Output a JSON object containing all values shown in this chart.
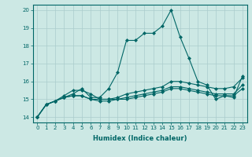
{
  "title": "",
  "xlabel": "Humidex (Indice chaleur)",
  "bg_color": "#cce8e4",
  "grid_color": "#aacccc",
  "line_color": "#006666",
  "xlim": [
    -0.5,
    23.5
  ],
  "ylim": [
    13.7,
    20.3
  ],
  "xticks": [
    0,
    1,
    2,
    3,
    4,
    5,
    6,
    7,
    8,
    9,
    10,
    11,
    12,
    13,
    14,
    15,
    16,
    17,
    18,
    19,
    20,
    21,
    22,
    23
  ],
  "yticks": [
    14,
    15,
    16,
    17,
    18,
    19,
    20
  ],
  "series": [
    [
      14.0,
      14.7,
      14.9,
      15.1,
      15.3,
      15.6,
      15.1,
      15.1,
      15.6,
      16.5,
      18.3,
      18.3,
      18.7,
      18.7,
      19.1,
      20.0,
      18.5,
      17.3,
      16.0,
      15.8,
      15.0,
      15.2,
      15.1,
      16.3
    ],
    [
      14.0,
      14.7,
      14.9,
      15.2,
      15.5,
      15.5,
      15.3,
      15.0,
      15.0,
      15.1,
      15.3,
      15.4,
      15.5,
      15.6,
      15.7,
      16.0,
      16.0,
      15.9,
      15.8,
      15.7,
      15.6,
      15.6,
      15.7,
      16.2
    ],
    [
      14.0,
      14.7,
      14.9,
      15.1,
      15.2,
      15.2,
      15.0,
      15.0,
      15.0,
      15.0,
      15.1,
      15.2,
      15.3,
      15.4,
      15.5,
      15.7,
      15.7,
      15.6,
      15.5,
      15.4,
      15.3,
      15.3,
      15.3,
      15.8
    ],
    [
      14.0,
      14.7,
      14.9,
      15.1,
      15.2,
      15.2,
      15.0,
      14.9,
      14.9,
      15.0,
      15.0,
      15.1,
      15.2,
      15.3,
      15.4,
      15.6,
      15.6,
      15.5,
      15.4,
      15.3,
      15.2,
      15.2,
      15.2,
      15.6
    ]
  ],
  "marker": "D",
  "marker_size": 2.0,
  "linewidth": 0.8,
  "xlabel_fontsize": 6.0,
  "tick_fontsize": 5.0
}
